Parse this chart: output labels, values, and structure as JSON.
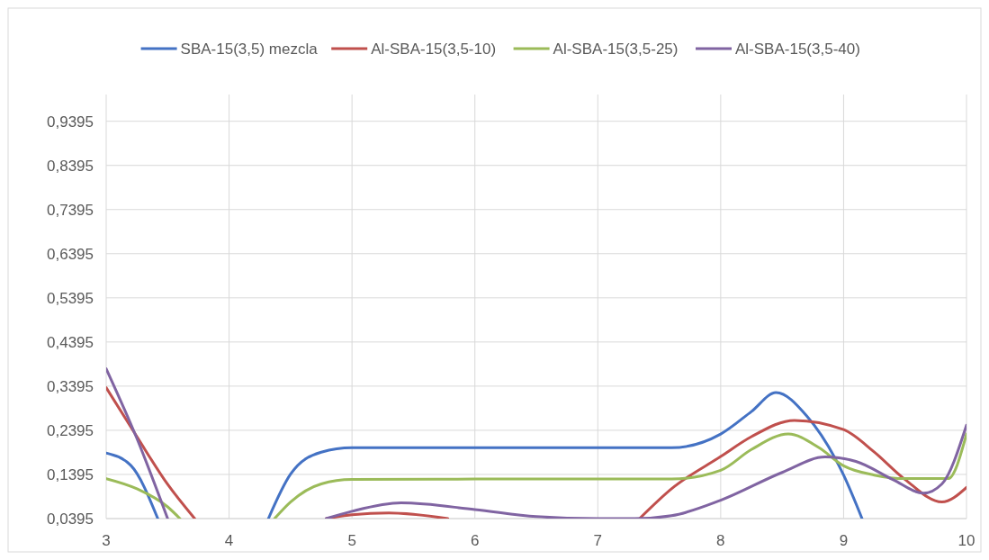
{
  "chart_data": {
    "type": "line",
    "legend": "top",
    "grid": true,
    "xlim": [
      3,
      10
    ],
    "xticks": [
      3,
      4,
      5,
      6,
      7,
      8,
      9,
      10
    ],
    "ylim": [
      0.0395,
      1.0
    ],
    "yticks": [
      {
        "value": 0.0395,
        "label": "0,0395"
      },
      {
        "value": 0.1395,
        "label": "0,1395"
      },
      {
        "value": 0.2395,
        "label": "0,2395"
      },
      {
        "value": 0.3395,
        "label": "0,3395"
      },
      {
        "value": 0.4395,
        "label": "0,4395"
      },
      {
        "value": 0.5395,
        "label": "0,5395"
      },
      {
        "value": 0.6395,
        "label": "0,6395"
      },
      {
        "value": 0.7395,
        "label": "0,7395"
      },
      {
        "value": 0.8395,
        "label": "0,8395"
      },
      {
        "value": 0.9395,
        "label": "0,9395"
      }
    ],
    "series": [
      {
        "name": "SBA-15(3,5) mezcla",
        "color": "#4472c4",
        "x": [
          3,
          3.2,
          3.42,
          3.9,
          4.32,
          4.5,
          4.75,
          5,
          6,
          7,
          7.6,
          8,
          8.25,
          8.45,
          8.7,
          9,
          9.15
        ],
        "values": [
          0.188,
          0.16,
          0.0395,
          null,
          0.0395,
          0.14,
          0.19,
          0.2,
          0.2,
          0.2,
          0.2,
          0.231,
          0.282,
          0.325,
          0.272,
          0.138,
          0.0395
        ]
      },
      {
        "name": "Al-SBA-15(3,5-10)",
        "color": "#c0504d",
        "x": [
          3,
          3.25,
          3.5,
          3.72,
          4.2,
          4.79,
          5,
          5.3,
          5.78,
          6.5,
          7.34,
          7.6,
          8,
          8.25,
          8.6,
          9,
          9.25,
          9.5,
          9.8,
          10
        ],
        "values": [
          0.336,
          0.225,
          0.117,
          0.0395,
          null,
          0.0395,
          0.048,
          0.052,
          0.0395,
          null,
          0.0395,
          0.107,
          0.18,
          0.225,
          0.262,
          0.241,
          0.19,
          0.128,
          0.077,
          0.11
        ]
      },
      {
        "name": "Al-SBA-15(3,5-25)",
        "color": "#9bbb59",
        "x": [
          3,
          3.25,
          3.5,
          3.6,
          4,
          4.37,
          4.5,
          4.75,
          5,
          6,
          7,
          7.6,
          8,
          8.25,
          8.55,
          8.8,
          9,
          9.25,
          9.5,
          9.85,
          10
        ],
        "values": [
          0.13,
          0.107,
          0.066,
          0.0395,
          null,
          0.0395,
          0.077,
          0.118,
          0.128,
          0.129,
          0.129,
          0.129,
          0.149,
          0.196,
          0.231,
          0.2,
          0.159,
          0.138,
          0.13,
          0.13,
          0.231
        ]
      },
      {
        "name": "Al-SBA-15(3,5-40)",
        "color": "#8064a2",
        "x": [
          3,
          3.25,
          3.5,
          4.2,
          4.79,
          5,
          5.4,
          6,
          6.5,
          7,
          7.3,
          7.6,
          8,
          8.5,
          8.85,
          9.1,
          9.4,
          9.65,
          9.8,
          10
        ],
        "values": [
          0.379,
          0.221,
          0.0395,
          null,
          0.0395,
          0.056,
          0.075,
          0.06,
          0.044,
          0.0395,
          0.0395,
          0.046,
          0.081,
          0.144,
          0.179,
          0.169,
          0.128,
          0.097,
          0.118,
          0.251
        ]
      }
    ]
  }
}
